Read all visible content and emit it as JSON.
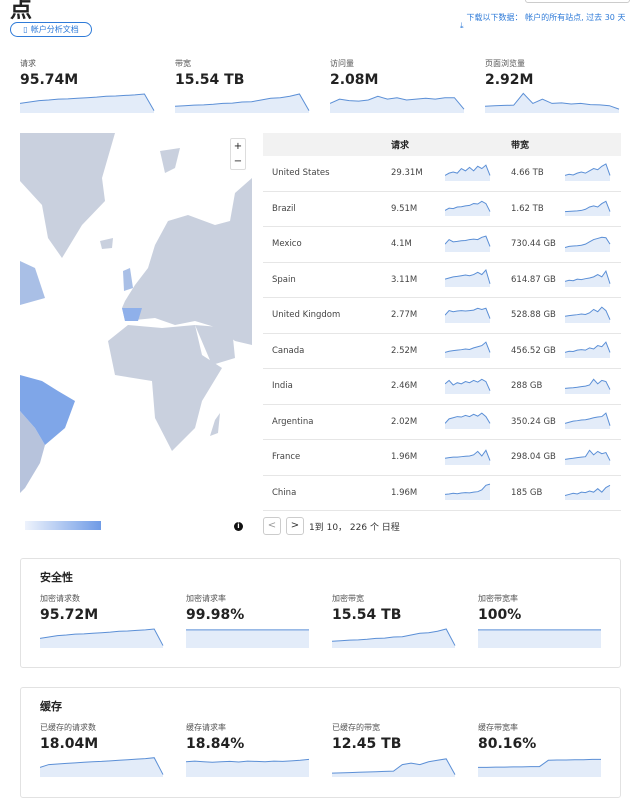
{
  "header": {
    "title": "点",
    "doc_button": "帐户分析文档",
    "download_text": "下载以下数据： 帐户的所有站点, 过去 30 天",
    "download_icon": "download-icon",
    "doc_icon": "book-icon"
  },
  "accent": "#2f7bd8",
  "top_metrics": [
    {
      "label": "请求",
      "value": "95.74M",
      "trend": [
        3,
        3.5,
        4,
        4.2,
        4.5,
        4.6,
        4.8,
        5,
        5.2,
        5.5,
        5.6,
        5.8,
        6,
        6.3,
        0.5
      ]
    },
    {
      "label": "带宽",
      "value": "15.54 TB",
      "trend": [
        2,
        2.2,
        2.4,
        2.5,
        2.7,
        3,
        3.1,
        3.5,
        3.6,
        4.2,
        4.8,
        5,
        5.5,
        6.3,
        0.5
      ]
    },
    {
      "label": "访问量",
      "value": "2.08M",
      "trend": [
        3,
        4.5,
        4,
        3.8,
        4.2,
        5.5,
        4.5,
        5,
        4.2,
        4.5,
        4.8,
        4.5,
        5,
        5,
        1
      ]
    },
    {
      "label": "页面浏览量",
      "value": "2.92M",
      "trend": [
        2,
        2.2,
        2.3,
        2.4,
        6.5,
        3,
        4.5,
        3,
        3.2,
        2.8,
        3,
        2.6,
        2.5,
        2.2,
        1
      ]
    }
  ],
  "map": {
    "zoom_in": "+",
    "zoom_out": "−",
    "info_icon": "info-icon",
    "colors": {
      "land": "#c9d0de",
      "high": "#7fa6e8",
      "mid": "#a9bfe6"
    }
  },
  "table": {
    "headers": [
      "",
      "请求",
      "",
      "带宽",
      ""
    ],
    "rows": [
      {
        "country": "United States",
        "requests": "29.31M",
        "bandwidth": "4.66 TB",
        "rt": [
          2,
          3,
          3.5,
          3,
          5,
          4,
          5.5,
          4,
          6,
          5,
          6.5,
          2
        ],
        "bt": [
          2,
          2.5,
          2.2,
          3,
          3.5,
          3,
          4,
          5,
          4.5,
          6,
          7,
          2
        ]
      },
      {
        "country": "Brazil",
        "requests": "9.51M",
        "bandwidth": "1.62 TB",
        "rt": [
          2,
          3,
          2.8,
          3.5,
          3.6,
          4,
          4.2,
          5,
          4.8,
          6,
          5,
          1.5
        ],
        "bt": [
          1.5,
          1.6,
          1.7,
          1.8,
          2,
          2.5,
          3.5,
          4,
          3.5,
          5,
          6,
          1.5
        ]
      },
      {
        "country": "Mexico",
        "requests": "4.1M",
        "bandwidth": "730.44 GB",
        "rt": [
          3,
          5,
          4,
          4.2,
          4.5,
          4.6,
          5,
          5.2,
          5,
          6,
          6.5,
          2
        ],
        "bt": [
          1.5,
          2,
          2.2,
          2.3,
          2.5,
          3,
          4,
          5,
          5.5,
          6,
          5.8,
          3
        ]
      },
      {
        "country": "Spain",
        "requests": "3.11M",
        "bandwidth": "614.87 GB",
        "rt": [
          3,
          3.5,
          4,
          4.2,
          4.5,
          4.8,
          4.5,
          5,
          6,
          5,
          7,
          1
        ],
        "bt": [
          2,
          2.5,
          2.3,
          3,
          2.8,
          3.2,
          3.5,
          4,
          5,
          4,
          6.5,
          1
        ]
      },
      {
        "country": "United Kingdom",
        "requests": "2.77M",
        "bandwidth": "528.88 GB",
        "rt": [
          3,
          5,
          4.5,
          4.8,
          5,
          4.8,
          5,
          5.2,
          6,
          5.5,
          6,
          1.5
        ],
        "bt": [
          2.5,
          2.8,
          3,
          3.2,
          3.5,
          3.3,
          4,
          5.5,
          4.5,
          6.5,
          5,
          1
        ]
      },
      {
        "country": "Canada",
        "requests": "2.52M",
        "bandwidth": "456.52 GB",
        "rt": [
          2,
          2.5,
          2.8,
          3,
          3.2,
          3.5,
          3.3,
          4,
          4.5,
          5,
          6.5,
          2
        ],
        "bt": [
          2,
          2.5,
          2.4,
          3,
          3.2,
          3,
          4,
          3.5,
          5,
          4.5,
          6.5,
          2
        ]
      },
      {
        "country": "India",
        "requests": "2.46M",
        "bandwidth": "288 GB",
        "rt": [
          4,
          5.5,
          3.5,
          4.5,
          4,
          5,
          4.5,
          5.5,
          4.8,
          6,
          5,
          1
        ],
        "bt": [
          2,
          2.2,
          2.3,
          2.5,
          2.8,
          3,
          3.5,
          6,
          4,
          5.5,
          5,
          1.5
        ]
      },
      {
        "country": "Argentina",
        "requests": "2.02M",
        "bandwidth": "350.24 GB",
        "rt": [
          2,
          4,
          4.5,
          5,
          4.8,
          5.5,
          5,
          6,
          5.2,
          6.5,
          5,
          2
        ],
        "bt": [
          2,
          2.5,
          3,
          3.2,
          3.5,
          3.6,
          4,
          4.5,
          4.8,
          5,
          6.5,
          1
        ]
      },
      {
        "country": "France",
        "requests": "1.96M",
        "bandwidth": "298.04 GB",
        "rt": [
          2.5,
          2.8,
          3,
          3,
          3.2,
          3.4,
          3.5,
          4,
          5.5,
          3.5,
          6,
          1.5
        ],
        "bt": [
          2,
          2.3,
          2.5,
          2.8,
          3,
          3.2,
          6,
          4,
          5.5,
          4.5,
          5,
          1.5
        ]
      },
      {
        "country": "China",
        "requests": "1.96M",
        "bandwidth": "185 GB",
        "rt": [
          2,
          2.2,
          2.5,
          2.3,
          2.6,
          2.8,
          2.7,
          3,
          3.2,
          4,
          6,
          6.5
        ],
        "bt": [
          1.5,
          2,
          2.5,
          2.2,
          3,
          2.8,
          3.5,
          3,
          4.5,
          3,
          5,
          6
        ]
      }
    ]
  },
  "pagination": {
    "prev": "<",
    "next": ">",
    "summary": "1到 10， 226 个 日程"
  },
  "security": {
    "title": "安全性",
    "metrics": [
      {
        "label": "加密请求数",
        "value": "95.72M",
        "trend": [
          3,
          3.5,
          4,
          4.2,
          4.5,
          4.6,
          4.8,
          5,
          5.2,
          5.5,
          5.6,
          5.8,
          6,
          6.3,
          0.5
        ]
      },
      {
        "label": "加密请求率",
        "value": "99.98%",
        "trend": [
          6,
          6,
          6,
          6,
          6,
          6,
          6,
          6,
          6,
          6,
          6,
          6,
          6,
          6,
          6
        ]
      },
      {
        "label": "加密带宽",
        "value": "15.54 TB",
        "trend": [
          2,
          2.2,
          2.4,
          2.5,
          2.7,
          3,
          3.1,
          3.5,
          3.6,
          4.2,
          4.8,
          5,
          5.5,
          6.3,
          0.5
        ]
      },
      {
        "label": "加密带宽率",
        "value": "100%",
        "trend": [
          6,
          6,
          6,
          6,
          6,
          6,
          6,
          6,
          6,
          6,
          6,
          6,
          6,
          6,
          6
        ]
      }
    ]
  },
  "cache": {
    "title": "缓存",
    "metrics": [
      {
        "label": "已缓存的请求数",
        "value": "18.04M",
        "trend": [
          3,
          4,
          4.2,
          4.4,
          4.6,
          4.8,
          5,
          5.1,
          5.3,
          5.5,
          5.7,
          5.9,
          6.1,
          6.4,
          0.5
        ]
      },
      {
        "label": "缓存请求率",
        "value": "18.84%",
        "trend": [
          5,
          5.2,
          5,
          4.8,
          5,
          5.1,
          4.9,
          5.2,
          5.1,
          5,
          5.2,
          5.1,
          5.3,
          5.5,
          5.8
        ]
      },
      {
        "label": "已缓存的带宽",
        "value": "12.45 TB",
        "trend": [
          1,
          1.1,
          1.2,
          1.3,
          1.4,
          1.5,
          1.6,
          1.7,
          4,
          4.5,
          4,
          5,
          5.5,
          6,
          0.5
        ]
      },
      {
        "label": "缓存带宽率",
        "value": "80.16%",
        "trend": [
          3,
          3,
          3.1,
          3.1,
          3.2,
          3.2,
          3.3,
          3.3,
          5.5,
          5.6,
          5.6,
          5.7,
          5.7,
          5.8,
          5.8
        ]
      }
    ]
  }
}
